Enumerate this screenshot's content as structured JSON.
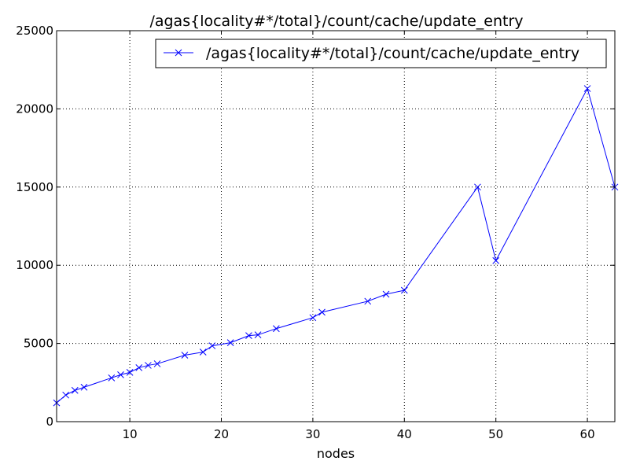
{
  "chart_data": {
    "type": "line",
    "title": "/agas{locality#*/total}/count/cache/update_entry",
    "xlabel": "nodes",
    "ylabel": "",
    "xlim": [
      2,
      63
    ],
    "ylim": [
      0,
      25000
    ],
    "xticks": [
      10,
      20,
      30,
      40,
      50,
      60
    ],
    "yticks": [
      0,
      5000,
      10000,
      15000,
      20000,
      25000
    ],
    "grid": true,
    "legend_position": "top-right",
    "series": [
      {
        "name": "/agas{locality#*/total}/count/cache/update_entry",
        "color": "#0000ff",
        "marker": "x",
        "x": [
          2,
          3,
          4,
          5,
          8,
          9,
          10,
          11,
          12,
          13,
          16,
          18,
          19,
          21,
          23,
          24,
          26,
          30,
          31,
          36,
          38,
          40,
          48,
          50,
          60,
          63
        ],
        "y": [
          1200,
          1700,
          2000,
          2200,
          2800,
          3000,
          3150,
          3450,
          3600,
          3700,
          4250,
          4450,
          4850,
          5050,
          5500,
          5550,
          5950,
          6650,
          7000,
          7700,
          8150,
          8400,
          15000,
          10300,
          21300,
          15000
        ]
      }
    ]
  }
}
